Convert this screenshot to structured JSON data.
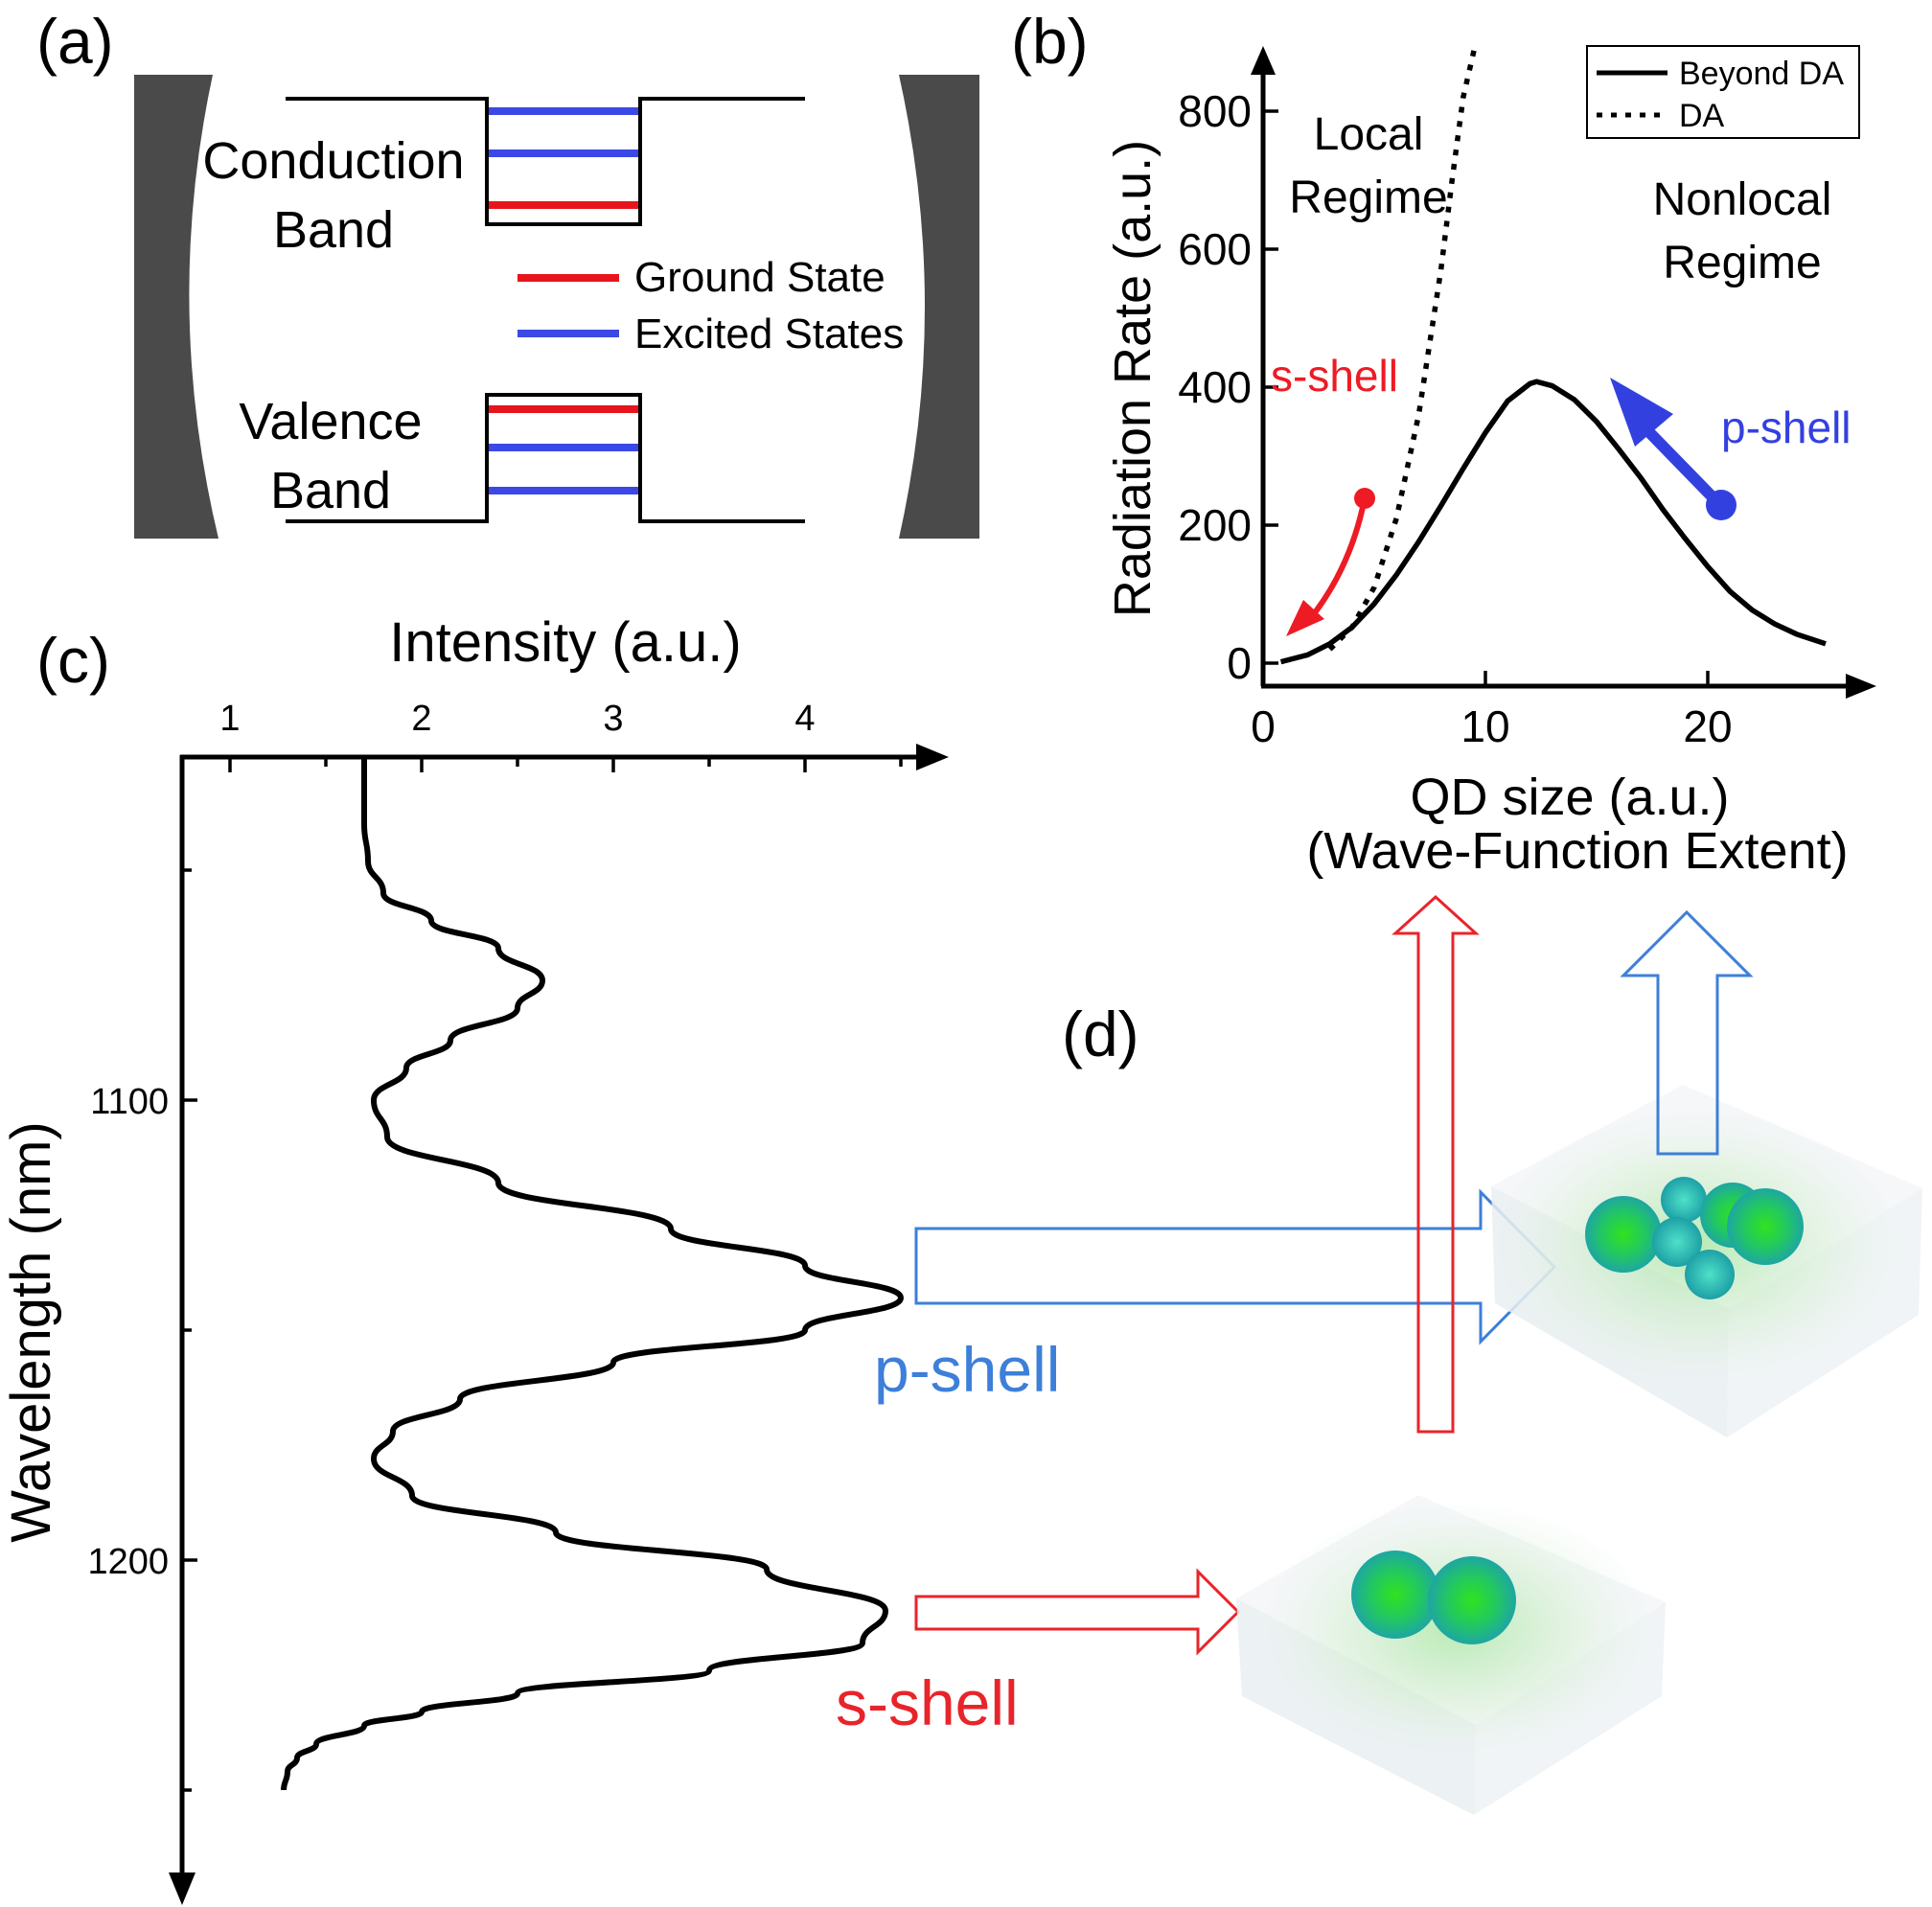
{
  "panels": {
    "a": {
      "label": "(a)",
      "conduction_band": [
        "Conduction",
        "Band"
      ],
      "valence_band": [
        "Valence",
        "Band"
      ],
      "legend": [
        {
          "text": "Ground State",
          "color": "#e8141c"
        },
        {
          "text": "Excited States",
          "color": "#3b48e6"
        }
      ]
    },
    "b": {
      "label": "(b)",
      "local_regime": [
        "Local",
        "Regime"
      ],
      "nonlocal_regime": [
        "Nonlocal",
        "Regime"
      ],
      "s_shell_label": "s-shell",
      "p_shell_label": "p-shell",
      "s_color": "#ee1b24",
      "p_color": "#3340e0"
    },
    "c": {
      "label": "(c)",
      "s_shell_label": "s-shell",
      "p_shell_label": "p-shell",
      "s_color": "#e8242b",
      "p_color": "#3d7fd9"
    },
    "d": {
      "label": "(d)"
    }
  },
  "chart_data": [
    {
      "type": "line",
      "panel": "b",
      "xlabel": [
        "QD size (a.u.)",
        "(Wave-Function Extent)"
      ],
      "ylabel": "Radiation Rate (a.u.)",
      "xlim": [
        0,
        26
      ],
      "ylim": [
        0,
        880
      ],
      "x_ticks": [
        0,
        10,
        20
      ],
      "y_ticks": [
        0,
        200,
        400,
        600,
        800
      ],
      "legend_position": "top-right",
      "series": [
        {
          "name": "Beyond DA",
          "style": "solid",
          "x": [
            0.8,
            2,
            3,
            4,
            5,
            6,
            7,
            8,
            9,
            10,
            11,
            12,
            12.3,
            13,
            14,
            15,
            16,
            17,
            18,
            19,
            20,
            21,
            22,
            23,
            24,
            25.3
          ],
          "y": [
            2,
            12,
            28,
            52,
            86,
            128,
            176,
            228,
            282,
            334,
            380,
            405,
            408,
            402,
            382,
            350,
            310,
            268,
            222,
            180,
            140,
            104,
            77,
            57,
            42,
            28
          ]
        },
        {
          "name": "DA",
          "style": "dotted",
          "x": [
            3,
            4,
            5,
            6,
            7,
            8,
            8.5,
            9,
            9.5
          ],
          "y": [
            20,
            52,
            110,
            210,
            360,
            570,
            700,
            820,
            890
          ]
        }
      ]
    },
    {
      "type": "line",
      "panel": "c",
      "xlabel": "Intensity (a.u.)",
      "ylabel": "Wavelength (nm)",
      "xlim": [
        0.75,
        4.55
      ],
      "ylim": [
        1025,
        1250
      ],
      "y_direction": "downward",
      "x_ticks": [
        1,
        2,
        3,
        4
      ],
      "y_ticks": [
        1100,
        1200
      ],
      "series": [
        {
          "name": "",
          "x": [
            1.7,
            1.7,
            1.72,
            1.8,
            2.05,
            2.4,
            2.63,
            2.5,
            2.15,
            1.92,
            1.75,
            1.82,
            2.4,
            3.3,
            4.0,
            4.5,
            4.0,
            3.0,
            2.2,
            1.85,
            1.75,
            1.95,
            2.7,
            3.8,
            4.42,
            4.3,
            3.5,
            2.5,
            2.0,
            1.7,
            1.45,
            1.35,
            1.3,
            1.28
          ],
          "y": [
            1025,
            1040,
            1048,
            1055,
            1061,
            1067,
            1074,
            1080,
            1087,
            1093,
            1100,
            1108,
            1118,
            1128,
            1136,
            1143,
            1150,
            1157,
            1165,
            1172,
            1178,
            1186,
            1194,
            1202,
            1211,
            1218,
            1224,
            1229,
            1233,
            1236,
            1240,
            1243,
            1246,
            1250
          ]
        }
      ]
    }
  ]
}
